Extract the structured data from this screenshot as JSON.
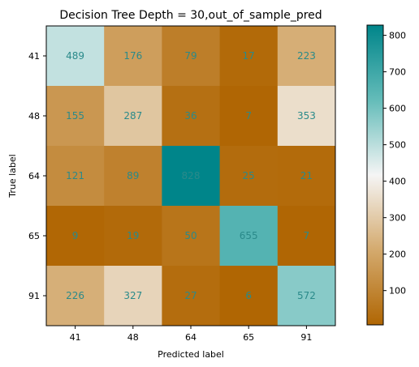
{
  "chart_data": {
    "type": "heatmap",
    "title": "Decision Tree Depth = 30,out_of_sample_pred",
    "xlabel": "Predicted label",
    "ylabel": "True label",
    "x_categories": [
      "41",
      "48",
      "64",
      "65",
      "91"
    ],
    "y_categories": [
      "41",
      "48",
      "64",
      "65",
      "91"
    ],
    "matrix": [
      [
        489,
        176,
        79,
        17,
        223
      ],
      [
        155,
        287,
        36,
        7,
        353
      ],
      [
        121,
        89,
        828,
        25,
        21
      ],
      [
        9,
        19,
        50,
        655,
        7
      ],
      [
        226,
        327,
        27,
        6,
        572
      ]
    ],
    "colorbar": {
      "vmin": 6,
      "vmax": 828,
      "ticks": [
        100,
        200,
        300,
        400,
        500,
        600,
        700,
        800
      ],
      "colors": {
        "low": "#b06603",
        "mid": "#f5f5f5",
        "high": "#00858a"
      }
    },
    "cell_text_color": "#2a8a8a"
  }
}
